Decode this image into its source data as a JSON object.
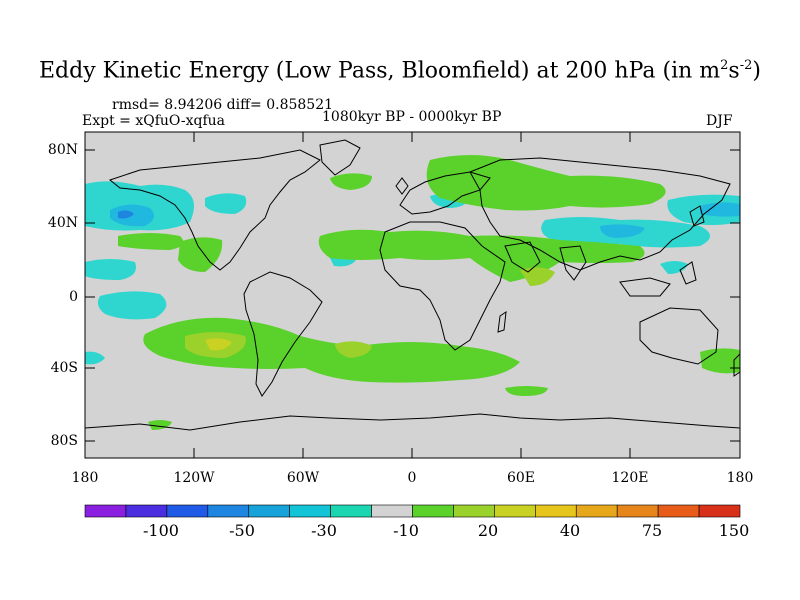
{
  "title": {
    "main": "Eddy Kinetic Energy (Low Pass, Bloomfield) at 200 hPa (in m",
    "sup1": "2",
    "mid": "s",
    "sup2": "-2",
    "end": ")"
  },
  "stats": "rmsd= 8.94206 diff= 0.858521",
  "expt": "Expt = xQfuO-xqfua",
  "period": "1080kyr BP - 0000kyr BP",
  "season": "DJF",
  "lat_labels": [
    "80N",
    "40N",
    "0",
    "40S",
    "80S"
  ],
  "lon_labels": [
    "180",
    "120W",
    "60W",
    "0",
    "60E",
    "120E",
    "180"
  ],
  "colorbar": {
    "labels": [
      "-100",
      "-50",
      "-30",
      "-10",
      "20",
      "40",
      "75",
      "150"
    ],
    "colors": [
      "#8a1fe0",
      "#4a2ee0",
      "#1f5be6",
      "#1e86e0",
      "#17a3d9",
      "#12c4d6",
      "#1bd6b0",
      "#d3d3d3",
      "#5bd12c",
      "#9ad12a",
      "#c9d123",
      "#e6c51c",
      "#e6a81a",
      "#e6861a",
      "#e65c18",
      "#d9301a"
    ]
  },
  "colors": {
    "land_ocean": "#d3d3d3",
    "neg_light": "#2fd6cf",
    "neg_mid": "#21b8e0",
    "neg_dark": "#1e86e0",
    "pos_light": "#5bd12c",
    "pos_mid": "#9ad12a",
    "pos_dark": "#c9d123"
  }
}
